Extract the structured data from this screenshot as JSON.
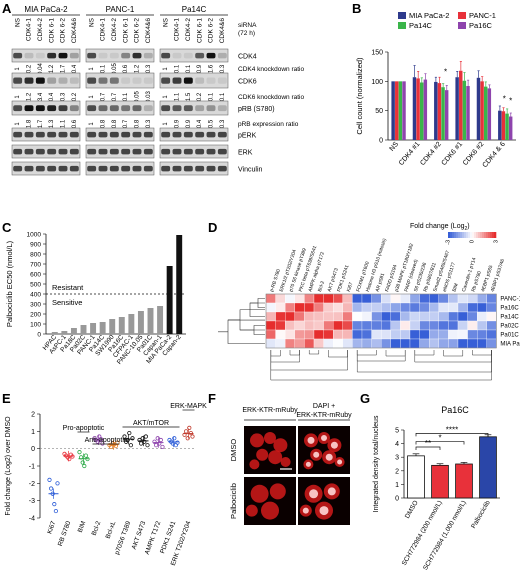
{
  "panels": {
    "A": {
      "letter": "A",
      "cell_lines": [
        "MIA PaCa-2",
        "PANC-1",
        "Pa14C"
      ],
      "lane_labels": [
        "NS",
        "CDK4-1",
        "CDK4-2",
        "CDK 6-1",
        "CDK 6-2",
        "CDK4&6"
      ],
      "sirna_label_1": "siRNA",
      "sirna_label_2": "(72 h)",
      "cdk4_ratios": [
        [
          "1",
          "0.2",
          "0.04",
          "1.2",
          "1.7",
          "0.4"
        ],
        [
          "1",
          "0.1",
          "0.05",
          "0.6",
          "1.2",
          "0.3"
        ],
        [
          "1",
          "0.1",
          "0.1",
          "0.9",
          "1.6",
          "0.3"
        ]
      ],
      "cdk6_ratios": [
        [
          "1",
          "1.2",
          "3.4",
          "0.4",
          "0.3",
          "0.2"
        ],
        [
          "1",
          "0.7",
          "0.7",
          "0.1",
          "0.05",
          "0.03"
        ],
        [
          "1",
          "1.1",
          "1.5",
          "0.2",
          "0.1",
          "0.1"
        ]
      ],
      "prb_ratios": [
        [
          "1",
          "1.8",
          "1.7",
          "1.3",
          "1.1",
          "0.6"
        ],
        [
          "1",
          "0.8",
          "0.8",
          "0.7",
          "0.8",
          "0.3"
        ],
        [
          "1",
          "0.9",
          "0.9",
          "0.4",
          "0.5",
          "0.3"
        ]
      ],
      "row_labels": {
        "cdk4": "CDK4",
        "cdk4_ratio": "CDK4 knockdown ratio",
        "cdk6": "CDK6",
        "cdk6_ratio": "CDK6 knockdown ratio",
        "prb": "pRB (S780)",
        "prb_ratio": "pRB expression ratio",
        "perk": "pERK",
        "erk": "ERK",
        "vinculin": "Vinculin"
      }
    },
    "B": {
      "letter": "B",
      "legend": [
        "MIA PaCa-2",
        "PANC-1",
        "Pa14C",
        "Pa16C"
      ]
    },
    "C": {
      "letter": "C",
      "resistant_label": "Resistant",
      "sensitive_label": "Sensitive"
    },
    "D": {
      "letter": "D",
      "legend_title": "Fold change (Log",
      "legend_title_sub": "2",
      "legend_title_end": ")",
      "legend_ticks": [
        "-3",
        "0",
        "3"
      ],
      "columns": [
        "p-RB S780",
        "ERK1/2 pT202/Y204",
        "p70 S6 kinase pT389",
        "PKC beta pT638/S641",
        "AMPK alpha pT172",
        "Bcl-2",
        "AKT pS473",
        "PDK1 pS241",
        "Ki67",
        "FOXM1 pT600",
        "Histone H3 pS10 (mitosis)",
        "AR pS81",
        "FADD pS194",
        "p38 MAPK pT180/Y182",
        "PARP (cleaved)",
        "S6 pS235/236",
        "Rb pS807/811",
        "Smad2 pS465/S467",
        "eNOS pS1177",
        "BIM",
        "Caveolin-1 pY14",
        "Rb pS780",
        "4EBP1 pS65",
        "4EBP1 pS37/46"
      ],
      "rows": [
        "PANC-1",
        "Pa16C",
        "Pa14C",
        "Pa02C",
        "Pa01C",
        "MIA PaCa-2"
      ]
    },
    "E": {
      "letter": "E",
      "group_labels": [
        "Pro-apoptotic",
        "Anti-apoptotic",
        "AKT/mTOR",
        "ERK-MAPK"
      ]
    },
    "F": {
      "letter": "F",
      "col1_label": "ERK-KTR-mRuby",
      "col2_label_1": "DAPI +",
      "col2_label_2": "ERK-KTR-mRuby",
      "row1_label": "DMSO",
      "row2_label": "Palbociclib"
    },
    "G": {
      "letter": "G",
      "sig": [
        "**",
        "*",
        "****"
      ]
    }
  },
  "chart_data": [
    {
      "id": "B",
      "type": "bar",
      "categories": [
        "NS",
        "CDK4 #1",
        "CDK4 #2",
        "CDK6 #1",
        "CDK6 #2",
        "CDK4 & 6"
      ],
      "ylabel": "Cell count (normalized)",
      "ylim": [
        0,
        150
      ],
      "yticks": [
        0,
        50,
        100,
        150
      ],
      "series": [
        {
          "name": "MIA PaCa-2",
          "color": "#2e3a8c",
          "values": [
            100,
            107,
            99,
            107,
            106,
            50
          ]
        },
        {
          "name": "PANC-1",
          "color": "#e8313a",
          "values": [
            100,
            105,
            97,
            118,
            100,
            49
          ]
        },
        {
          "name": "Pa14C",
          "color": "#3ab54a",
          "values": [
            100,
            98,
            90,
            101,
            91,
            45
          ]
        },
        {
          "name": "Pa16C",
          "color": "#8e44ad",
          "values": [
            100,
            103,
            85,
            92,
            88,
            40
          ]
        }
      ],
      "errors": [
        [
          0,
          20,
          8,
          10,
          12,
          8
        ],
        [
          0,
          12,
          10,
          16,
          8,
          6
        ],
        [
          0,
          8,
          6,
          14,
          8,
          8
        ],
        [
          0,
          10,
          8,
          10,
          6,
          6
        ]
      ],
      "annotations": [
        "*",
        "*",
        "*"
      ]
    },
    {
      "id": "C",
      "type": "bar",
      "categories": [
        "HPAC",
        "AsPC-1",
        "Pa18C",
        "Pa02C",
        "PANC-1",
        "Pa14C",
        "SW1990",
        "Pa16C",
        "CFPAC-1",
        "PANC-10.05",
        "Pa01C",
        "Capan-1",
        "MIA PaCa-2",
        "Capan-2"
      ],
      "ylabel": "Palbociclib EC50 (nmol/L)",
      "ylim": [
        0,
        1000
      ],
      "yticks": [
        0,
        100,
        200,
        300,
        400,
        500,
        600,
        700,
        800,
        900,
        1000
      ],
      "values": [
        20,
        30,
        60,
        90,
        110,
        120,
        150,
        170,
        200,
        230,
        260,
        280,
        680,
        990
      ],
      "colors": [
        "#999",
        "#999",
        "#999",
        "#999",
        "#999",
        "#999",
        "#999",
        "#999",
        "#999",
        "#999",
        "#999",
        "#999",
        "#111",
        "#111"
      ],
      "threshold": 400
    },
    {
      "id": "E",
      "type": "scatter",
      "categories": [
        "Ki67",
        "RB S780",
        "BIM",
        "Bcl-2",
        "Bcl-xL",
        "p70S6 T389",
        "AKT S473",
        "AMPK T172",
        "PDK1 S241",
        "ERK T202/Y204"
      ],
      "ylabel": "Fold change (Log2) over DMSO",
      "ylim": [
        -4,
        2
      ],
      "yticks": [
        -4,
        -3,
        -2,
        -1,
        0,
        1,
        2
      ],
      "colors": [
        "#2a5bd7",
        "#e8313a",
        "#27a844",
        "#8e44ad",
        "#e67e22",
        "#111111",
        "#111111",
        "#8e44ad",
        "#2a5bd7",
        "#c0392b"
      ],
      "points": [
        [
          -1.8,
          -2.3,
          -2.6,
          -3.2,
          -3.6,
          -2.0
        ],
        [
          -0.3,
          -0.4,
          -0.5,
          -0.6,
          -0.35,
          -0.45
        ],
        [
          -0.2,
          -0.5,
          -0.8,
          -1.0,
          -0.4,
          -0.6
        ],
        [
          0.6,
          0.5,
          0.4,
          0.7,
          0.55,
          0.3
        ],
        [
          0.2,
          0.1,
          0.3,
          0.25,
          0.15,
          0.35
        ],
        [
          0.7,
          0.4,
          0.5,
          0.9,
          0.2,
          0.6
        ],
        [
          0.5,
          0.3,
          0.6,
          0.4,
          0.7,
          0.2
        ],
        [
          0.4,
          0.2,
          0.6,
          0.3,
          0.5,
          0.1
        ],
        [
          0.5,
          0.4,
          0.3,
          0.6,
          0.2,
          0.35
        ],
        [
          0.8,
          1.0,
          0.6,
          1.2,
          0.9,
          0.7
        ]
      ],
      "means": [
        -2.6,
        -0.43,
        -0.58,
        0.51,
        0.23,
        0.55,
        0.45,
        0.35,
        0.39,
        0.87
      ]
    },
    {
      "id": "G",
      "type": "bar",
      "title": "Pa16C",
      "categories": [
        "DMSO",
        "SCH772984 (200 nmol/L)",
        "SCH772984 (1,000 nmol/L)",
        "Palbociclib"
      ],
      "ylabel": "Integrated density total/nucleus",
      "ylim": [
        0,
        5
      ],
      "yticks": [
        0,
        1,
        2,
        3,
        4,
        5
      ],
      "values": [
        3.1,
        2.4,
        2.5,
        4.5
      ],
      "errors": [
        0.15,
        0.12,
        0.12,
        0.15
      ],
      "colors": [
        "#ffffff",
        "#e8313a",
        "#e8313a",
        "#2a46a8"
      ]
    }
  ]
}
